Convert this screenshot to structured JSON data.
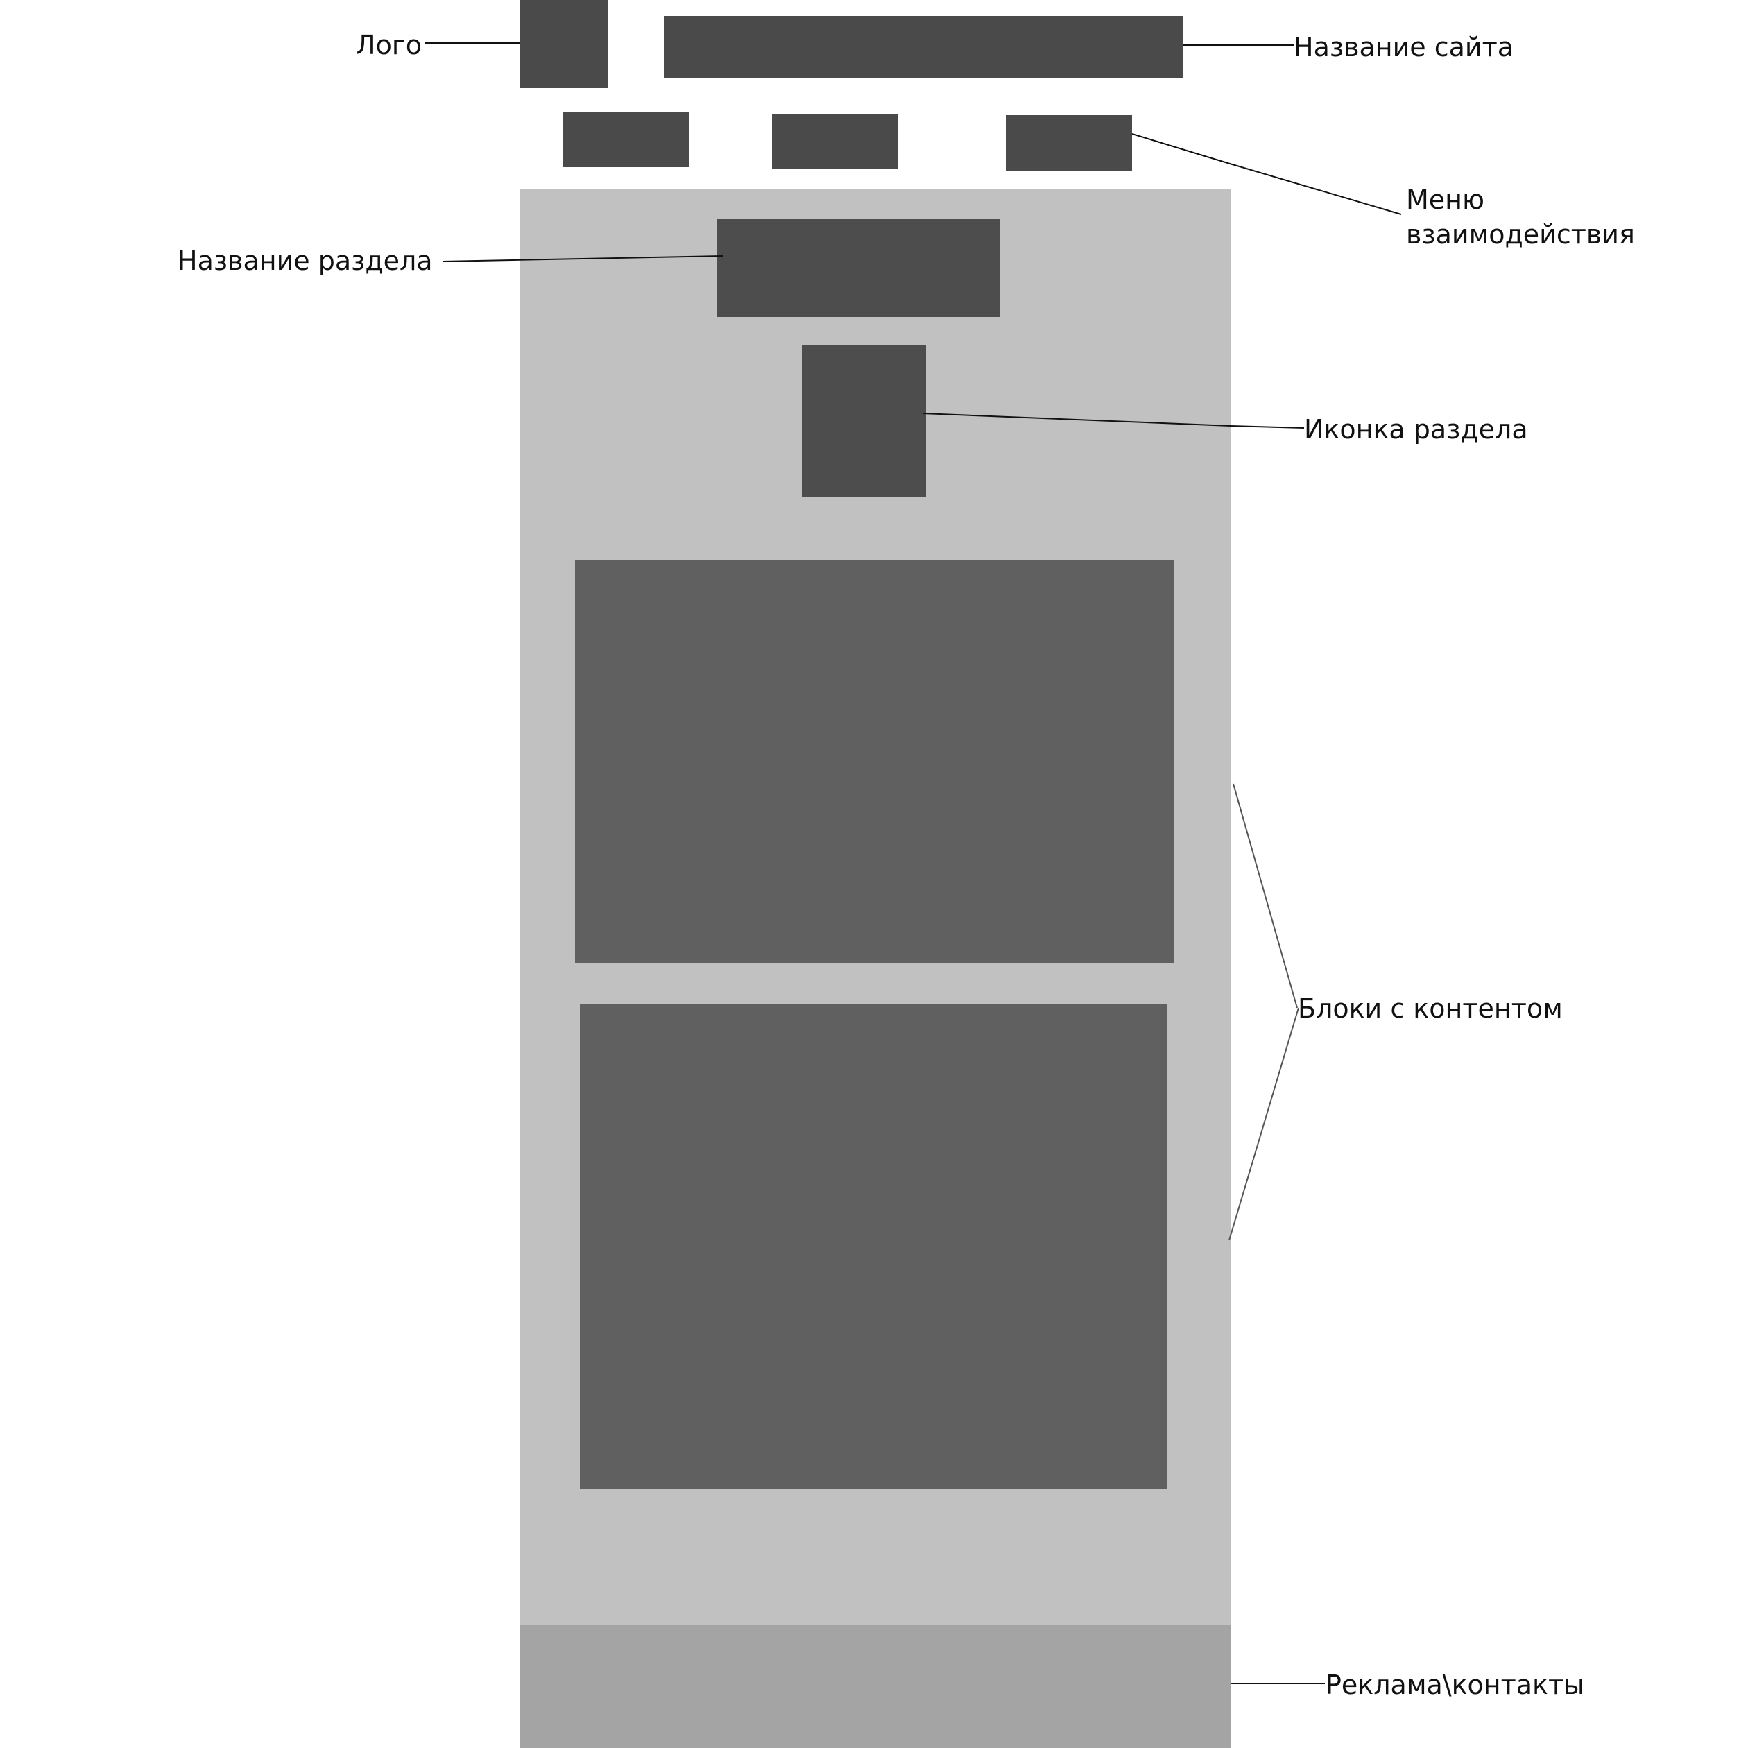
{
  "labels": {
    "logo": "Лого",
    "site_title": "Название сайта",
    "interaction_menu_line1": "Меню",
    "interaction_menu_line2": "взаимодействия",
    "section_title": "Название раздела",
    "section_icon": "Иконка раздела",
    "content_blocks": "Блоки с контентом",
    "ads_contacts": "Реклама\\контакты"
  },
  "colors": {
    "dark_block": "#4a4a4a",
    "content_block": "#606060",
    "page_background": "#c1c1c1",
    "footer_background": "#a4a4a4"
  }
}
